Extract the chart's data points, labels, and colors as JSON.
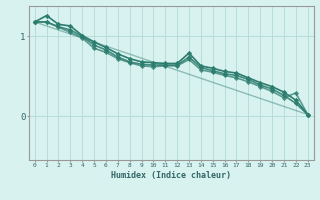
{
  "xlabel": "Humidex (Indice chaleur)",
  "bg_color": "#d8f2f0",
  "line_color": "#2d7d6e",
  "grid_color": "#b8ddd8",
  "xlim": [
    -0.5,
    23.5
  ],
  "ylim": [
    -0.55,
    1.38
  ],
  "yticks": [
    0,
    1
  ],
  "xticks": [
    0,
    1,
    2,
    3,
    4,
    5,
    6,
    7,
    8,
    9,
    10,
    11,
    12,
    13,
    14,
    15,
    16,
    17,
    18,
    19,
    20,
    21,
    22,
    23
  ],
  "series": [
    {
      "x": [
        0,
        1,
        2,
        3,
        4,
        5,
        6,
        7,
        8,
        9,
        10,
        11,
        12,
        13,
        14,
        15,
        16,
        17,
        18,
        19,
        20,
        21,
        22,
        23
      ],
      "y": [
        1.18,
        1.26,
        1.15,
        1.13,
        1.01,
        0.93,
        0.86,
        0.78,
        0.72,
        0.68,
        0.67,
        0.66,
        0.66,
        0.79,
        0.63,
        0.6,
        0.56,
        0.54,
        0.48,
        0.42,
        0.37,
        0.3,
        0.2,
        0.02
      ],
      "marker": "D",
      "lw": 1.2
    },
    {
      "x": [
        0,
        1,
        2,
        3,
        4,
        5,
        6,
        7,
        8,
        9,
        10,
        11,
        12,
        13,
        14,
        15,
        16,
        17,
        18,
        19,
        20,
        21,
        22,
        23
      ],
      "y": [
        1.18,
        1.18,
        1.12,
        1.08,
        1.0,
        0.89,
        0.83,
        0.74,
        0.68,
        0.65,
        0.64,
        0.64,
        0.64,
        0.74,
        0.61,
        0.57,
        0.53,
        0.51,
        0.46,
        0.39,
        0.34,
        0.26,
        0.16,
        0.02
      ],
      "marker": "D",
      "lw": 1.2
    },
    {
      "x": [
        0,
        1,
        3,
        4,
        5,
        6,
        7,
        8,
        9,
        10,
        11,
        12,
        13,
        14,
        15,
        16,
        17,
        18,
        19,
        20,
        21,
        22,
        23
      ],
      "y": [
        1.18,
        1.18,
        1.05,
        0.98,
        0.85,
        0.8,
        0.72,
        0.67,
        0.63,
        0.62,
        0.63,
        0.63,
        0.71,
        0.58,
        0.55,
        0.51,
        0.48,
        0.43,
        0.37,
        0.31,
        0.23,
        0.29,
        0.02
      ],
      "marker": "D",
      "lw": 1.2
    },
    {
      "x": [
        0,
        23
      ],
      "y": [
        1.18,
        0.02
      ],
      "marker": null,
      "lw": 1.0
    }
  ]
}
